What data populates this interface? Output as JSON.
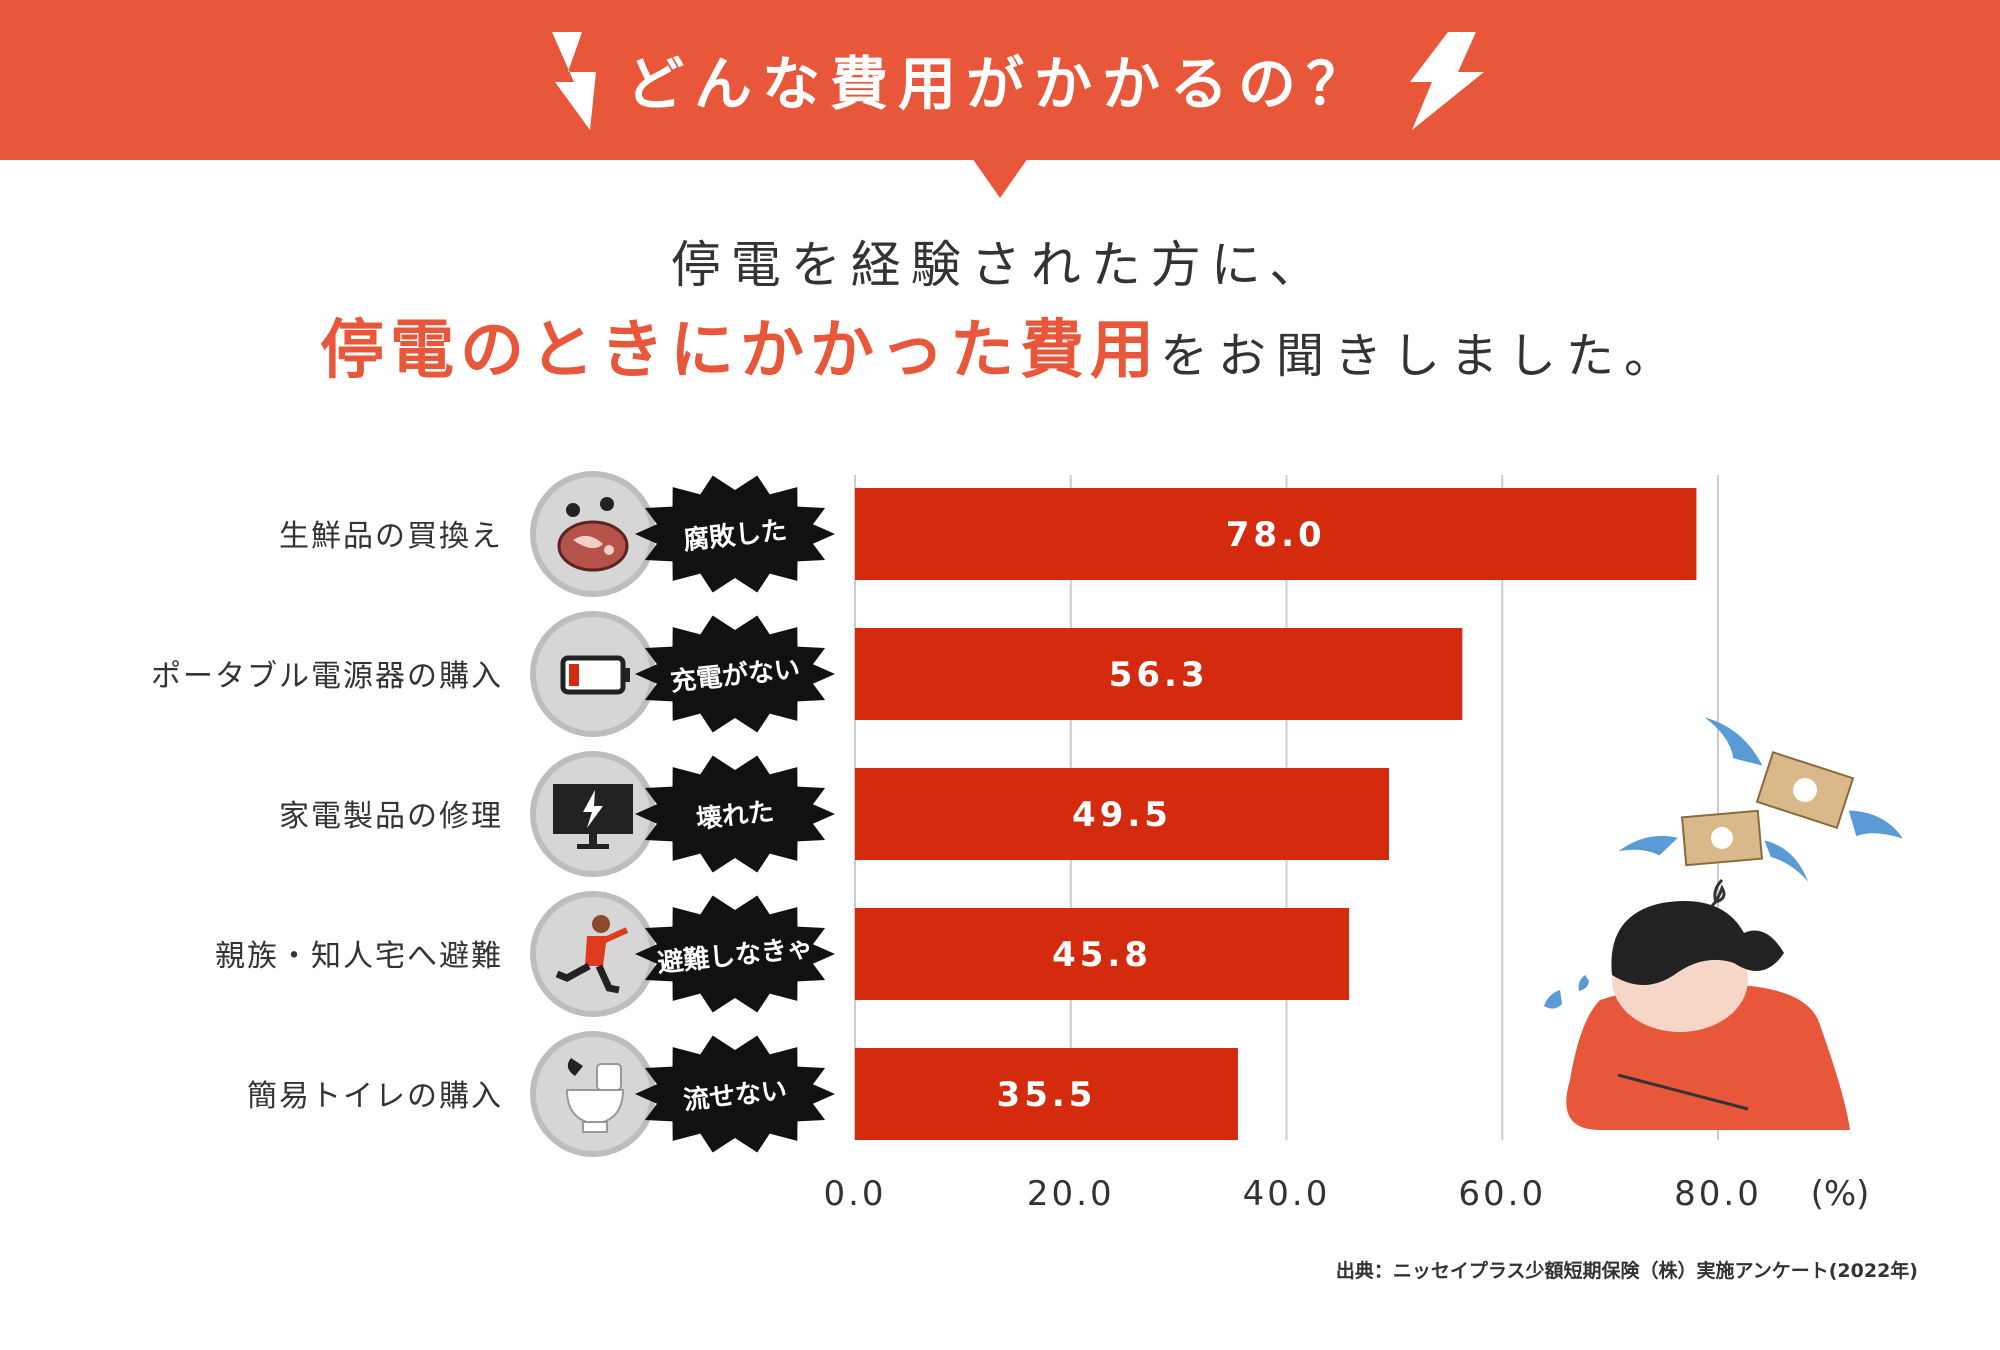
{
  "header": {
    "title": "どんな費用がかかるの？",
    "background_color": "#E8573A"
  },
  "subtitle": {
    "line1": "停電を経験された方に、",
    "line2_highlight": "停電のときにかかった費用",
    "line2_rest": "をお聞きしました。",
    "highlight_color": "#E8573A"
  },
  "chart_data": {
    "type": "bar",
    "orientation": "horizontal",
    "categories": [
      "生鮮品の買換え",
      "ポータブル電源器の購入",
      "家電製品の修理",
      "親族・知人宅へ避難",
      "簡易トイレの購入"
    ],
    "badges": [
      "腐敗した",
      "充電がない",
      "壊れた",
      "避難しなきゃ",
      "流せない"
    ],
    "icons": [
      "raw-meat-icon",
      "low-battery-icon",
      "broken-monitor-icon",
      "running-person-icon",
      "toilet-icon"
    ],
    "values": [
      78.0,
      56.3,
      49.5,
      45.8,
      35.5
    ],
    "value_labels": [
      "78.0",
      "56.3",
      "49.5",
      "45.8",
      "35.5"
    ],
    "x_ticks": [
      "0.0",
      "20.0",
      "40.0",
      "60.0",
      "80.0"
    ],
    "x_unit": "(%)",
    "xlim": [
      0,
      80
    ],
    "bar_color": "#D42A0E",
    "grid": true
  },
  "source_note": "出典：ニッセイプラス少額短期保険（株）実施アンケート(2022年)"
}
